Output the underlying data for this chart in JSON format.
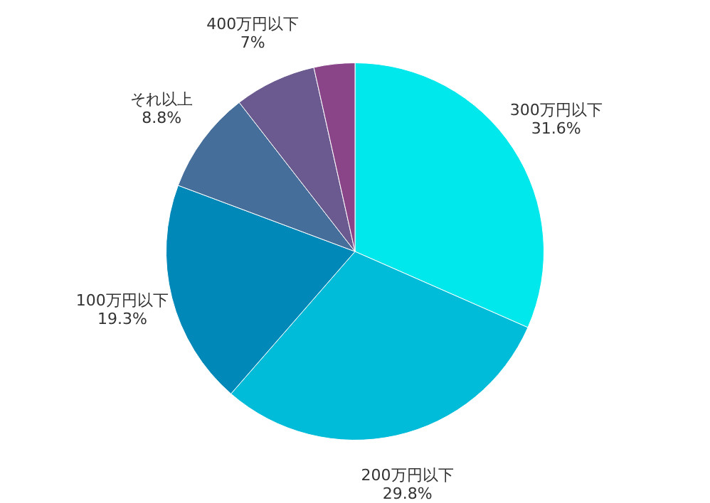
{
  "chart_data": {
    "type": "pie",
    "categories": [
      "300万円以下",
      "200万円以下",
      "100万円以下",
      "それ以上",
      "400万円以下",
      null
    ],
    "values": [
      31.6,
      29.8,
      19.3,
      8.8,
      7,
      3.5
    ],
    "colors": [
      "#00e8ec",
      "#00bcd8",
      "#0088b8",
      "#466e9a",
      "#6a5a90",
      "#8a4488"
    ],
    "value_labels": [
      "31.6%",
      "29.8%",
      "19.3%",
      "8.8%",
      "7%",
      null
    ],
    "legend": false
  }
}
